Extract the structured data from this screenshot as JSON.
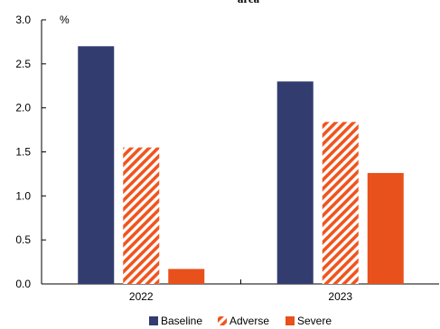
{
  "chart_data": {
    "type": "bar",
    "title": "area",
    "unit_label": "%",
    "categories": [
      "2022",
      "2023"
    ],
    "series": [
      {
        "name": "Baseline",
        "values": [
          2.7,
          2.3
        ],
        "color": "#333c6e",
        "fill": "solid"
      },
      {
        "name": "Adverse",
        "values": [
          1.55,
          1.84
        ],
        "color": "#f0541e",
        "fill": "hatched"
      },
      {
        "name": "Severe",
        "values": [
          0.17,
          1.26
        ],
        "color": "#e8501c",
        "fill": "solid"
      }
    ],
    "ylim": [
      0,
      3.0
    ],
    "yticks": [
      "0.0",
      "0.5",
      "1.0",
      "1.5",
      "2.0",
      "2.5",
      "3.0"
    ],
    "xlabel": "",
    "ylabel": "",
    "grid": false,
    "legend_position": "bottom"
  }
}
